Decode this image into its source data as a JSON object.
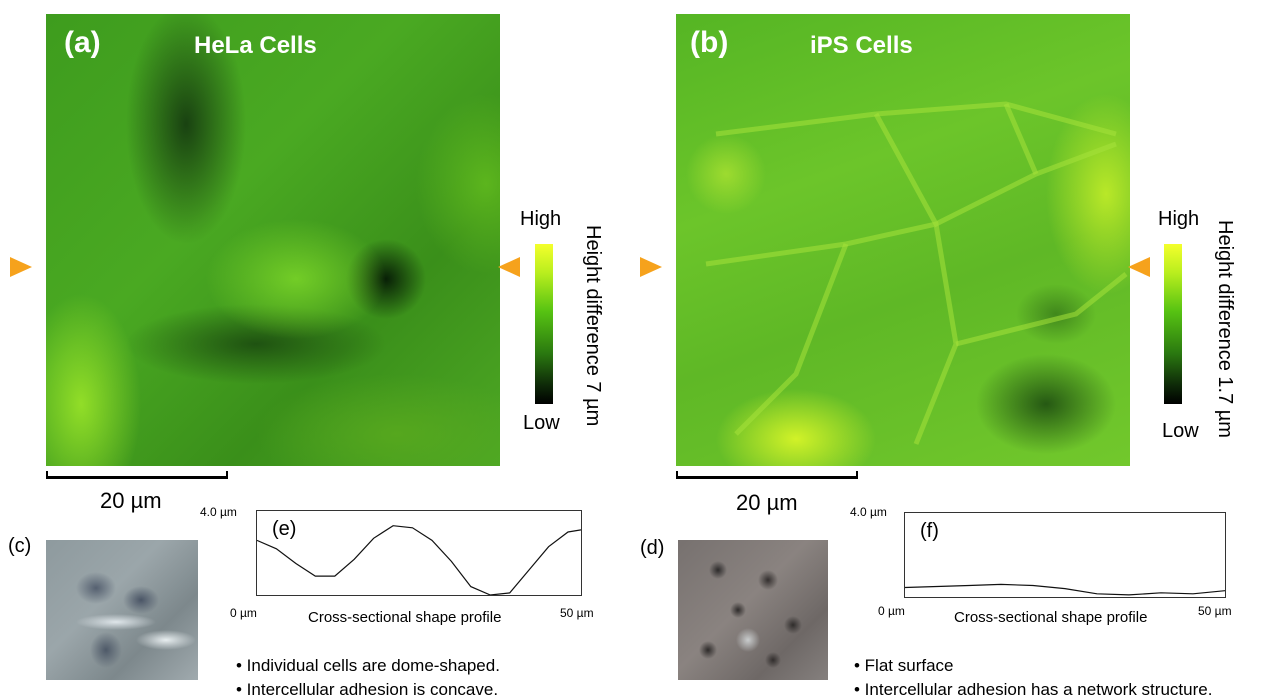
{
  "panel_a": {
    "label": "(a)",
    "title": "HeLa Cells",
    "colorbar_high": "High",
    "colorbar_low": "Low",
    "colorbar_title": "Height difference 7 µm",
    "scale": "20 µm"
  },
  "panel_b": {
    "label": "(b)",
    "title": "iPS Cells",
    "colorbar_high": "High",
    "colorbar_low": "Low",
    "colorbar_title": "Height difference 1.7 µm",
    "scale": "20 µm"
  },
  "panel_c": {
    "label": "(c)"
  },
  "panel_d": {
    "label": "(d)"
  },
  "panel_e": {
    "label": "(e)",
    "y_max": "4.0 µm",
    "x_min": "0 µm",
    "x_max": "50 µm",
    "xlabel": "Cross-sectional shape profile"
  },
  "panel_f": {
    "label": "(f)",
    "y_max": "4.0 µm",
    "x_min": "0 µm",
    "x_max": "50 µm",
    "xlabel": "Cross-sectional shape profile"
  },
  "notes_left": [
    "• Individual cells are dome-shaped.",
    "• Intercellular adhesion is concave."
  ],
  "notes_right": [
    "• Flat surface",
    "• Intercellular adhesion has a network structure."
  ],
  "colors": {
    "arrow": "#f6a21c",
    "map_low": "#000000",
    "map_high": "#f4ff2c"
  },
  "chart_data": [
    {
      "type": "line",
      "panel": "e",
      "ylim": [
        0,
        4.0
      ],
      "xlim": [
        0,
        50
      ],
      "x": [
        0,
        3,
        6,
        9,
        12,
        15,
        18,
        21,
        24,
        27,
        30,
        33,
        36,
        39,
        42,
        45,
        48,
        50
      ],
      "values": [
        2.6,
        2.2,
        1.5,
        0.9,
        0.9,
        1.7,
        2.7,
        3.3,
        3.2,
        2.6,
        1.6,
        0.4,
        0.0,
        0.1,
        1.2,
        2.3,
        3.0,
        3.1
      ]
    },
    {
      "type": "line",
      "panel": "f",
      "ylim": [
        0,
        4.0
      ],
      "xlim": [
        0,
        50
      ],
      "x": [
        0,
        5,
        10,
        15,
        20,
        25,
        30,
        35,
        40,
        45,
        50
      ],
      "values": [
        0.45,
        0.5,
        0.55,
        0.6,
        0.55,
        0.4,
        0.15,
        0.1,
        0.2,
        0.15,
        0.3
      ]
    }
  ]
}
